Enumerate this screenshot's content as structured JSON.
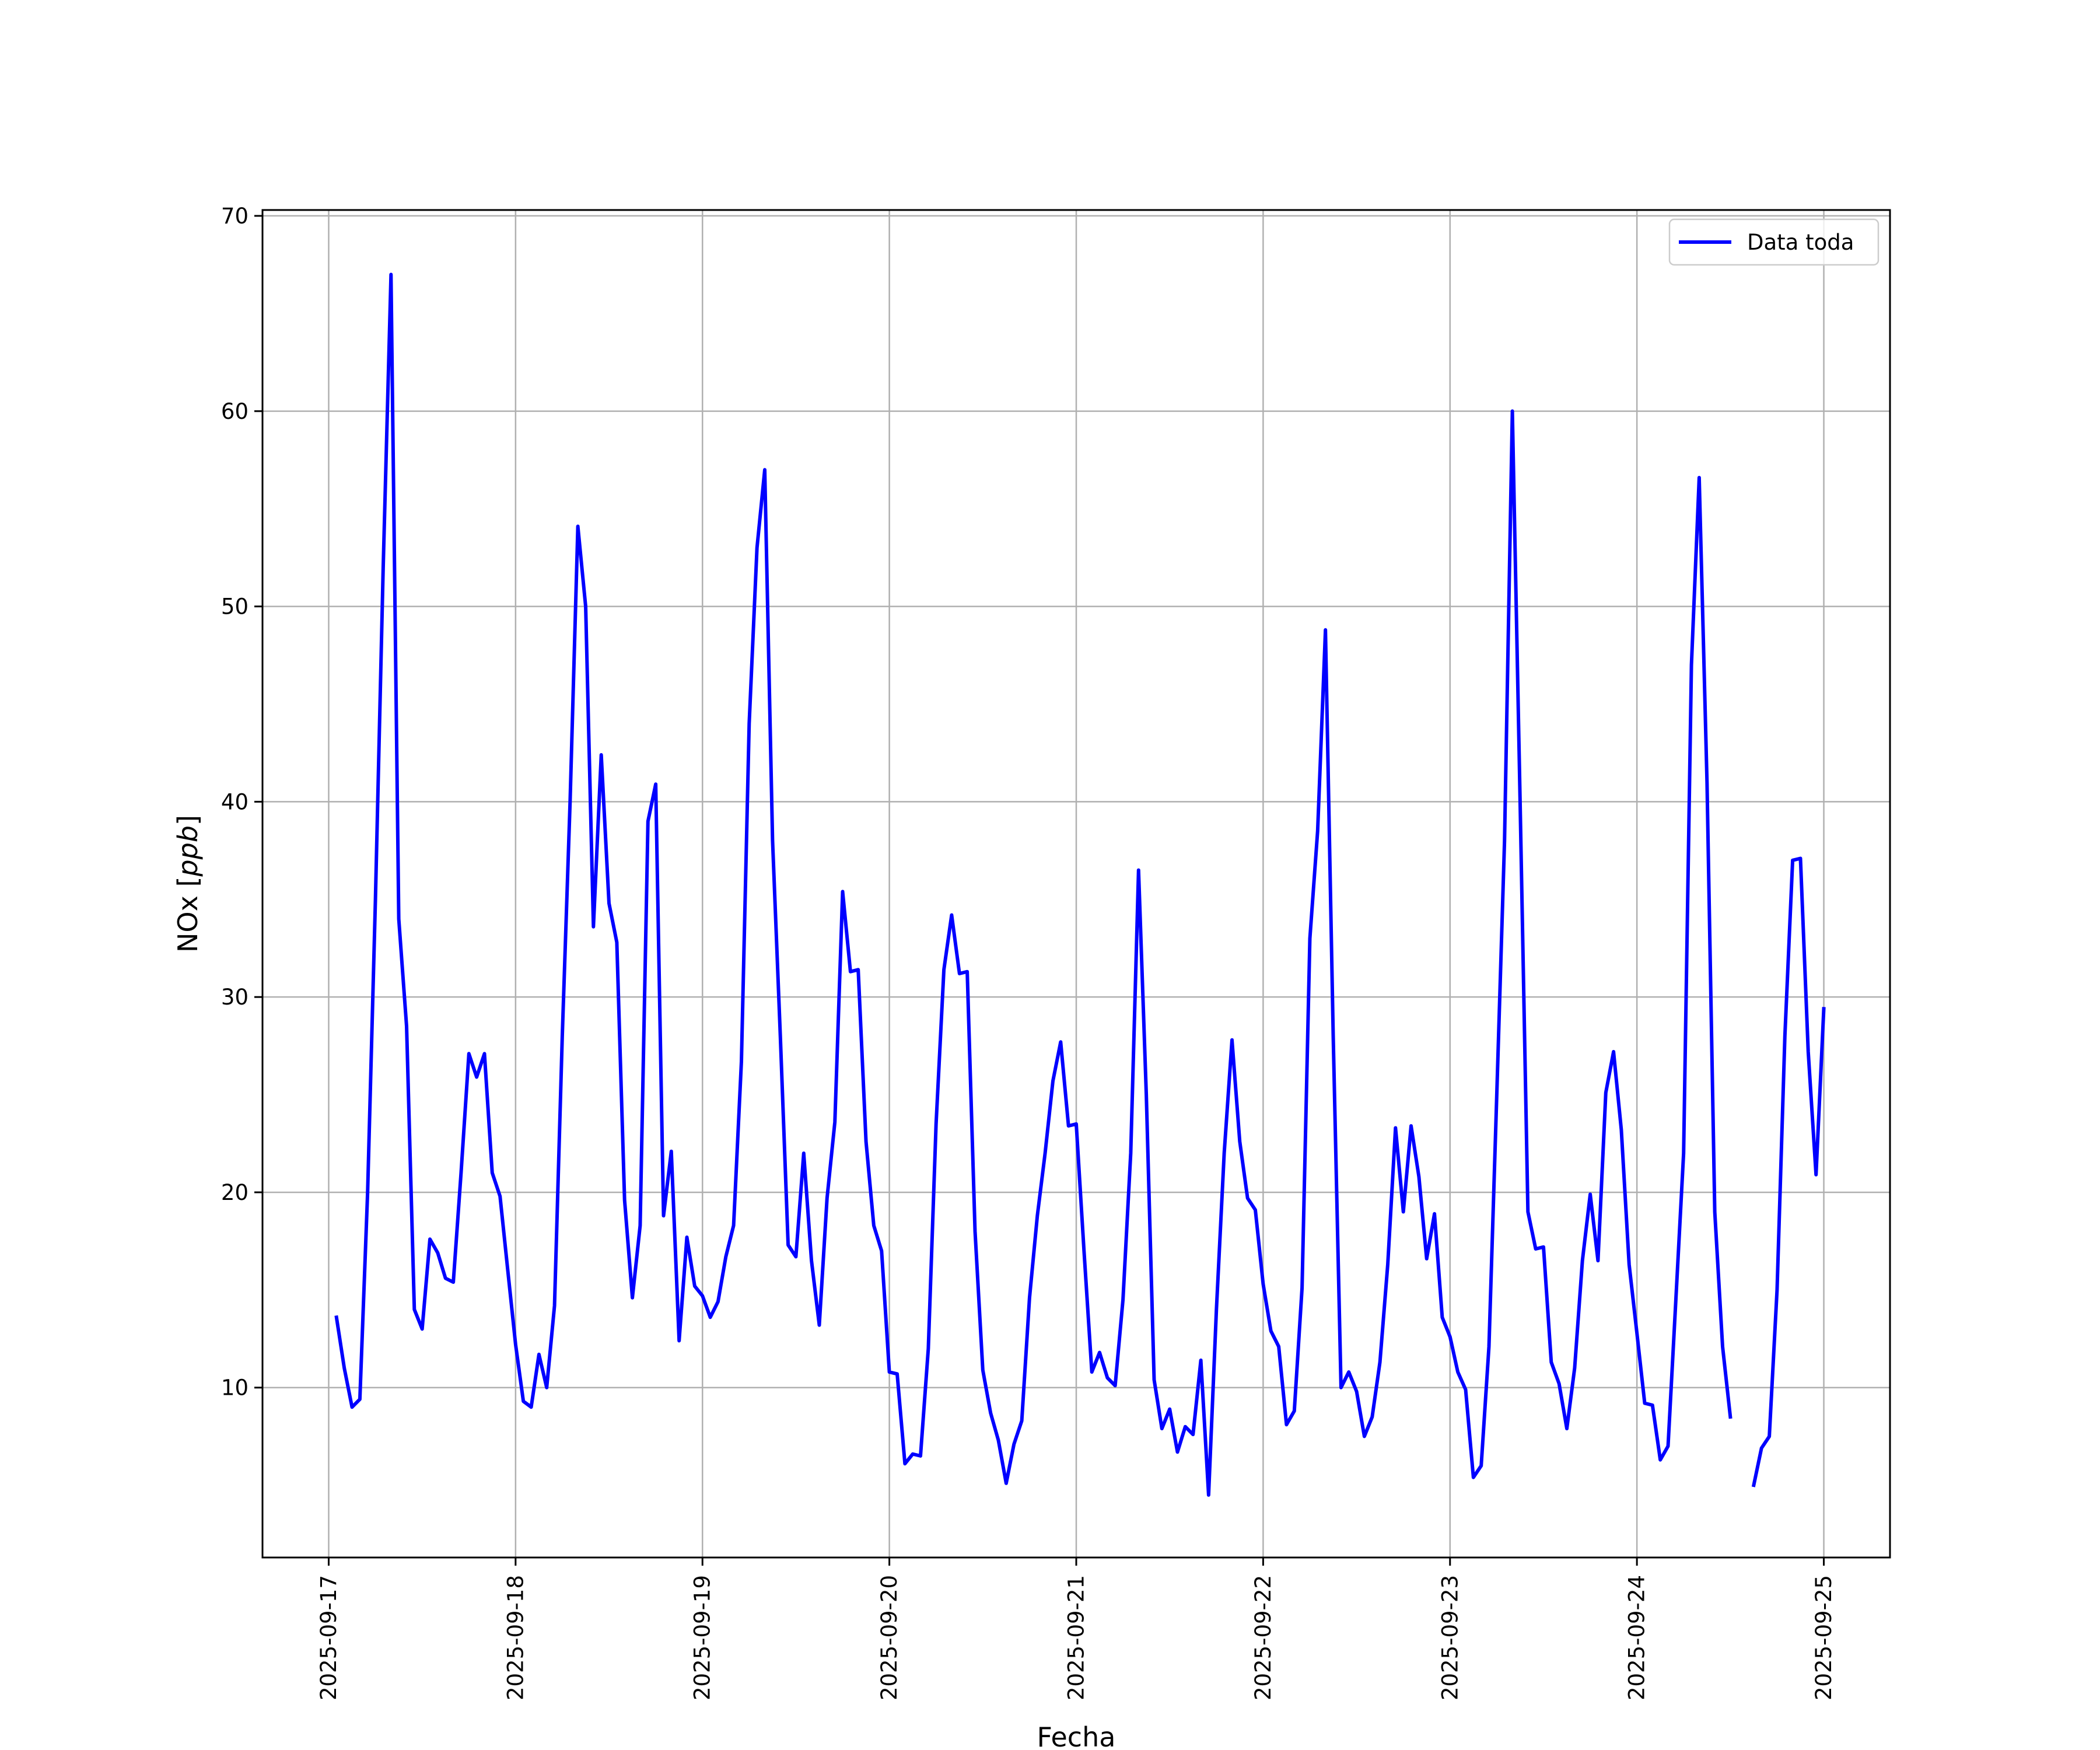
{
  "chart_data": {
    "type": "line",
    "title": "",
    "xlabel": "Fecha",
    "ylabel": "NOx [ppb]",
    "ylabel_main": "NOx [",
    "ylabel_unit": "ppb",
    "ylabel_close": "]",
    "xlim": [
      "2025-09-16 15:30",
      "2025-09-25 08:30"
    ],
    "ylim": [
      1.3,
      70.3
    ],
    "grid": true,
    "legend_position": "top-right",
    "x_ticks": [
      "2025-09-17",
      "2025-09-18",
      "2025-09-19",
      "2025-09-20",
      "2025-09-21",
      "2025-09-22",
      "2025-09-23",
      "2025-09-24",
      "2025-09-25"
    ],
    "y_ticks": [
      10,
      20,
      30,
      40,
      50,
      60,
      70
    ],
    "y_tick_labels": [
      "10",
      "20",
      "30",
      "40",
      "50",
      "60",
      "70"
    ],
    "colors": {
      "series": "#0000ff",
      "grid": "#b0b0b0",
      "axes": "#000000"
    },
    "series": [
      {
        "name": "Data toda",
        "start": "2025-09-17 01:00",
        "interval_hours": 1,
        "values": [
          13.6,
          11.0,
          9.0,
          9.4,
          20.0,
          35.0,
          52.0,
          67.0,
          34.0,
          28.5,
          14.0,
          13.0,
          17.6,
          16.9,
          15.6,
          15.4,
          21.0,
          27.1,
          25.9,
          27.1,
          21.0,
          19.8,
          16.0,
          12.2,
          9.3,
          9.0,
          11.7,
          10.0,
          14.2,
          28.0,
          40.0,
          54.1,
          50.0,
          33.6,
          42.4,
          34.8,
          32.8,
          19.6,
          14.6,
          18.3,
          39.0,
          40.9,
          18.8,
          22.1,
          12.4,
          17.7,
          15.2,
          14.7,
          13.6,
          14.4,
          16.7,
          18.3,
          26.7,
          44.0,
          53.0,
          57.0,
          38.0,
          28.0,
          17.3,
          16.7,
          22.0,
          16.5,
          13.2,
          19.7,
          23.6,
          35.4,
          31.3,
          31.4,
          22.6,
          18.3,
          17.0,
          10.8,
          10.7,
          6.1,
          6.6,
          6.5,
          12.0,
          23.5,
          31.4,
          34.2,
          31.2,
          31.3,
          18.0,
          10.9,
          8.7,
          7.3,
          5.1,
          7.1,
          8.3,
          14.6,
          18.8,
          22.0,
          25.7,
          27.7,
          23.4,
          23.5,
          17.0,
          10.8,
          11.8,
          10.5,
          10.1,
          14.5,
          22.0,
          36.5,
          25.0,
          10.4,
          7.9,
          8.9,
          6.7,
          8.0,
          7.6,
          11.4,
          4.5,
          14.0,
          22.0,
          27.8,
          22.6,
          19.7,
          19.1,
          15.3,
          12.9,
          12.1,
          8.1,
          8.8,
          15.1,
          33.0,
          38.5,
          48.8,
          28.0,
          10.0,
          10.8,
          9.8,
          7.5,
          8.5,
          11.3,
          16.3,
          23.3,
          19.0,
          23.4,
          20.8,
          16.6,
          18.9,
          13.6,
          12.6,
          10.8,
          9.9,
          5.4,
          6.0,
          12.1,
          25.0,
          38.0,
          60.0,
          40.0,
          19.0,
          17.1,
          17.2,
          11.3,
          10.2,
          7.9,
          11.0,
          16.5,
          19.9,
          16.5,
          25.1,
          27.2,
          23.2,
          16.3,
          12.8,
          9.2,
          9.1,
          6.3,
          7.0,
          14.5,
          22.0,
          47.0,
          56.6,
          41.0,
          19.0,
          12.1,
          8.5,
          null,
          null,
          5.0,
          6.9,
          7.5,
          15.0,
          28.0,
          37.0,
          37.1,
          27.2,
          20.9,
          29.4
        ]
      }
    ]
  }
}
